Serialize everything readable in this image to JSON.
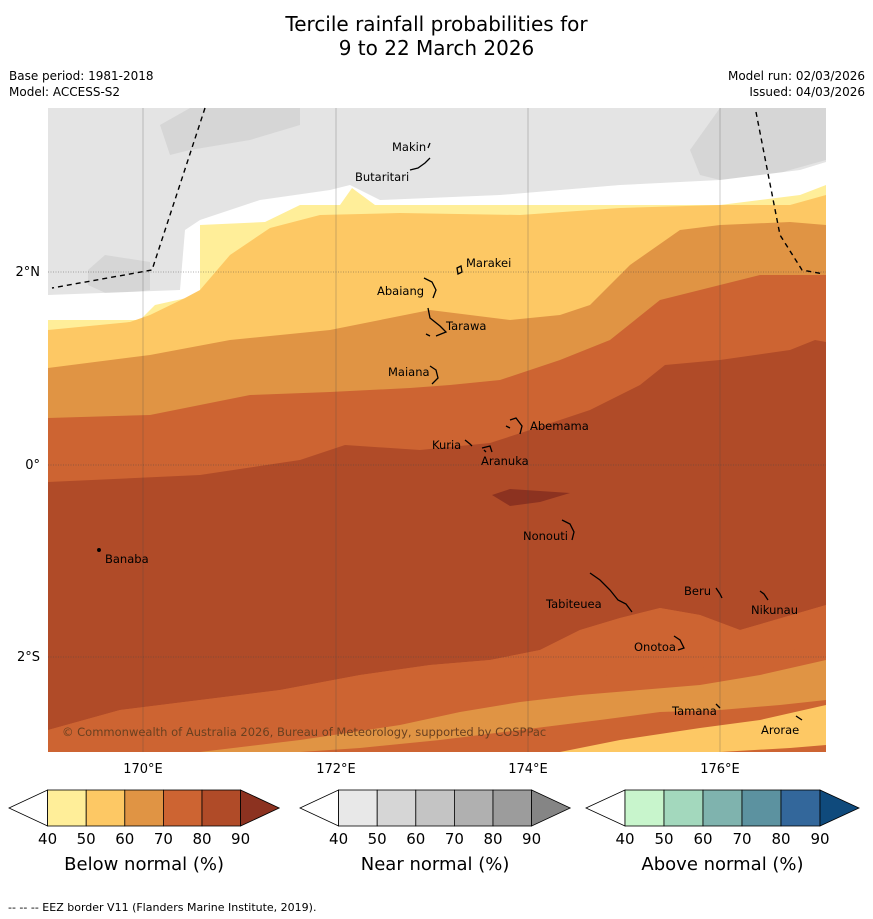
{
  "title_line1": "Tercile rainfall probabilities for",
  "title_line2": "9 to 22 March 2026",
  "base_period": "Base period: 1981-2018",
  "model": "Model: ACCESS-S2",
  "model_run": "Model run: 02/03/2026",
  "issued": "Issued: 04/03/2026",
  "map": {
    "lon_labels": [
      "170°E",
      "172°E",
      "174°E",
      "176°E"
    ],
    "lat_labels": [
      "2°N",
      "0°",
      "2°S"
    ],
    "places": [
      "Makin",
      "Butaritari",
      "Marakei",
      "Abaiang",
      "Tarawa",
      "Maiana",
      "Abemama",
      "Kuria",
      "Aranuka",
      "Nonouti",
      "Banaba",
      "Beru",
      "Tabiteuea",
      "Nikunau",
      "Onotoa",
      "Tamana",
      "Arorae"
    ],
    "copyright": "© Commonwealth of Australia 2026, Bureau of Meteorology, supported by COSPPac"
  },
  "colorbars": [
    {
      "label": "Below normal (%)",
      "ticks": [
        "40",
        "50",
        "60",
        "70",
        "80",
        "90"
      ],
      "colors": [
        "#ffffff",
        "#ffee99",
        "#fdc864",
        "#e09444",
        "#cd6432",
        "#b04b28",
        "#8c3220"
      ]
    },
    {
      "label": "Near normal (%)",
      "ticks": [
        "40",
        "50",
        "60",
        "70",
        "80",
        "90"
      ],
      "colors": [
        "#ffffff",
        "#e8e8e8",
        "#d6d6d6",
        "#c4c4c4",
        "#b0b0b0",
        "#9c9c9c",
        "#858585"
      ]
    },
    {
      "label": "Above normal (%)",
      "ticks": [
        "40",
        "50",
        "60",
        "70",
        "80",
        "90"
      ],
      "colors": [
        "#ffffff",
        "#c8f5cc",
        "#a3d8bd",
        "#7fb3ae",
        "#5c92a0",
        "#33679b",
        "#0f4a7c"
      ]
    }
  ],
  "footer": "-- -- -- EEZ border V11 (Flanders Marine Institute, 2019)."
}
